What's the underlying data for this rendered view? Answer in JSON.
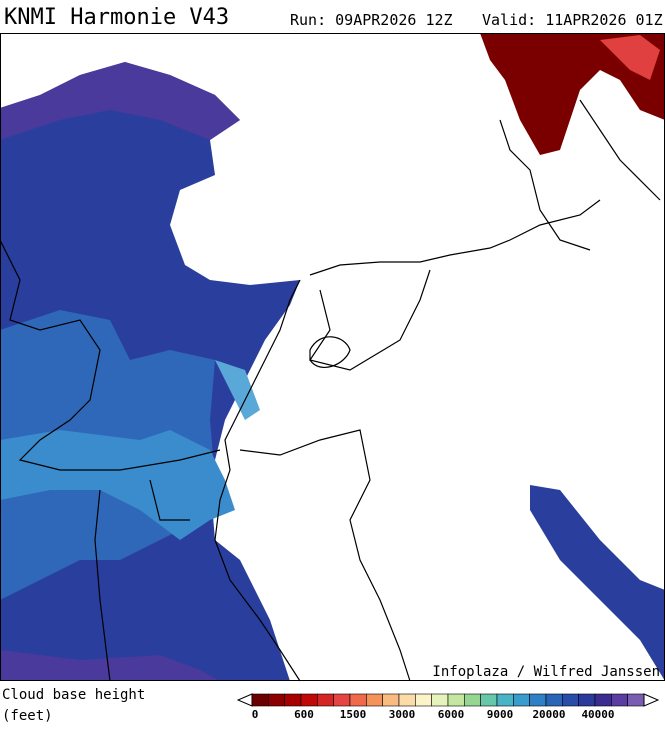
{
  "header": {
    "title": "KNMI Harmonie V43",
    "run": "Run: 09APR2026 12Z",
    "valid": "Valid: 11APR2026 01Z"
  },
  "map": {
    "credit": "Infoplaza / Wilfred Janssen"
  },
  "legend": {
    "label": "Cloud base height",
    "unit": "(feet)",
    "colors": [
      "#6b0000",
      "#8b0000",
      "#a80000",
      "#c00808",
      "#d42424",
      "#e44444",
      "#ee6a4a",
      "#f4925c",
      "#f8bc80",
      "#fbdca8",
      "#fdf3c8",
      "#e6f3bc",
      "#c4e6a0",
      "#96d692",
      "#68c6aa",
      "#48b4c6",
      "#389ccc",
      "#2f80c4",
      "#2a64b6",
      "#284ca8",
      "#2a3a9a",
      "#3a2c90",
      "#5a3ca2",
      "#7a5cb2"
    ],
    "ticks": [
      0,
      600,
      1500,
      3000,
      6000,
      9000,
      20000,
      40000
    ]
  }
}
